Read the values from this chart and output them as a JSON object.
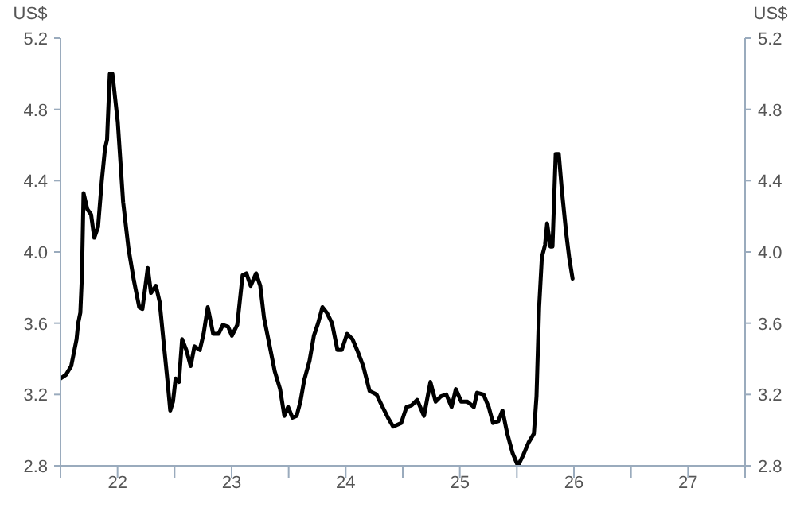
{
  "chart_data": {
    "type": "line",
    "ylabel": "US$",
    "y2label": "US$",
    "xlim": [
      21.5,
      27.5
    ],
    "xticks": [
      {
        "value": 21.5,
        "label": null
      },
      22,
      {
        "value": 22.5,
        "label": null
      },
      23,
      {
        "value": 23.5,
        "label": null
      },
      24,
      {
        "value": 24.5,
        "label": null
      },
      25,
      {
        "value": 25.5,
        "label": null
      },
      26,
      {
        "value": 26.5,
        "label": null
      },
      27,
      {
        "value": 27.5,
        "label": null
      }
    ],
    "ylim": [
      2.8,
      5.2
    ],
    "yticks": [
      2.8,
      3.2,
      3.6,
      {
        "value": 4,
        "label": "4.0"
      },
      4.4,
      4.8,
      5.2
    ],
    "y2lim": [
      2.8,
      5.2
    ],
    "y2ticks": [
      2.8,
      3.2,
      3.6,
      {
        "value": 4,
        "label": "4.0"
      },
      4.4,
      4.8,
      5.2
    ],
    "marker": "none",
    "line_style": "solid",
    "series": [
      {
        "color": "#000000",
        "x": [
          21.5,
          21.547,
          21.594,
          21.641,
          21.655,
          21.674,
          21.688,
          21.702,
          21.735,
          21.768,
          21.796,
          21.829,
          21.862,
          21.89,
          21.908,
          21.932,
          21.955,
          22.002,
          22.049,
          22.096,
          22.143,
          22.19,
          22.218,
          22.265,
          22.293,
          22.336,
          22.369,
          22.406,
          22.439,
          22.462,
          22.486,
          22.509,
          22.538,
          22.566,
          22.603,
          22.641,
          22.674,
          22.721,
          22.754,
          22.791,
          22.838,
          22.885,
          22.923,
          22.969,
          23.002,
          23.049,
          23.096,
          23.129,
          23.167,
          23.214,
          23.251,
          23.284,
          23.331,
          23.378,
          23.425,
          23.462,
          23.495,
          23.533,
          23.57,
          23.603,
          23.636,
          23.683,
          23.721,
          23.758,
          23.796,
          23.833,
          23.88,
          23.927,
          23.965,
          24.012,
          24.059,
          24.106,
          24.153,
          24.209,
          24.27,
          24.323,
          24.37,
          24.416,
          24.486,
          24.533,
          24.579,
          24.626,
          24.686,
          24.742,
          24.788,
          24.835,
          24.881,
          24.928,
          24.965,
          25.012,
          25.067,
          25.123,
          25.151,
          25.207,
          25.253,
          25.291,
          25.337,
          25.374,
          25.416,
          25.463,
          25.509,
          25.556,
          25.602,
          25.649,
          25.672,
          25.695,
          25.719,
          25.747,
          25.765,
          25.793,
          25.812,
          25.84,
          25.867,
          25.895,
          25.933,
          25.96,
          25.988
        ],
        "values": [
          3.29,
          3.31,
          3.36,
          3.51,
          3.6,
          3.66,
          3.87,
          4.33,
          4.24,
          4.21,
          4.08,
          4.14,
          4.4,
          4.58,
          4.63,
          5.0,
          5.0,
          4.73,
          4.28,
          4.02,
          3.84,
          3.69,
          3.68,
          3.91,
          3.77,
          3.81,
          3.72,
          3.48,
          3.27,
          3.11,
          3.16,
          3.29,
          3.27,
          3.51,
          3.45,
          3.36,
          3.47,
          3.45,
          3.54,
          3.69,
          3.54,
          3.54,
          3.59,
          3.58,
          3.53,
          3.59,
          3.87,
          3.88,
          3.81,
          3.88,
          3.81,
          3.63,
          3.48,
          3.33,
          3.23,
          3.08,
          3.13,
          3.07,
          3.08,
          3.16,
          3.28,
          3.39,
          3.53,
          3.6,
          3.69,
          3.66,
          3.6,
          3.45,
          3.45,
          3.54,
          3.51,
          3.44,
          3.36,
          3.22,
          3.2,
          3.13,
          3.07,
          3.02,
          3.04,
          3.13,
          3.14,
          3.17,
          3.08,
          3.27,
          3.16,
          3.19,
          3.2,
          3.13,
          3.23,
          3.16,
          3.16,
          3.13,
          3.21,
          3.2,
          3.13,
          3.04,
          3.05,
          3.11,
          2.98,
          2.87,
          2.8,
          2.86,
          2.93,
          2.98,
          3.19,
          3.69,
          3.97,
          4.04,
          4.16,
          4.03,
          4.03,
          4.55,
          4.55,
          4.34,
          4.1,
          3.96,
          3.85
        ]
      }
    ]
  }
}
